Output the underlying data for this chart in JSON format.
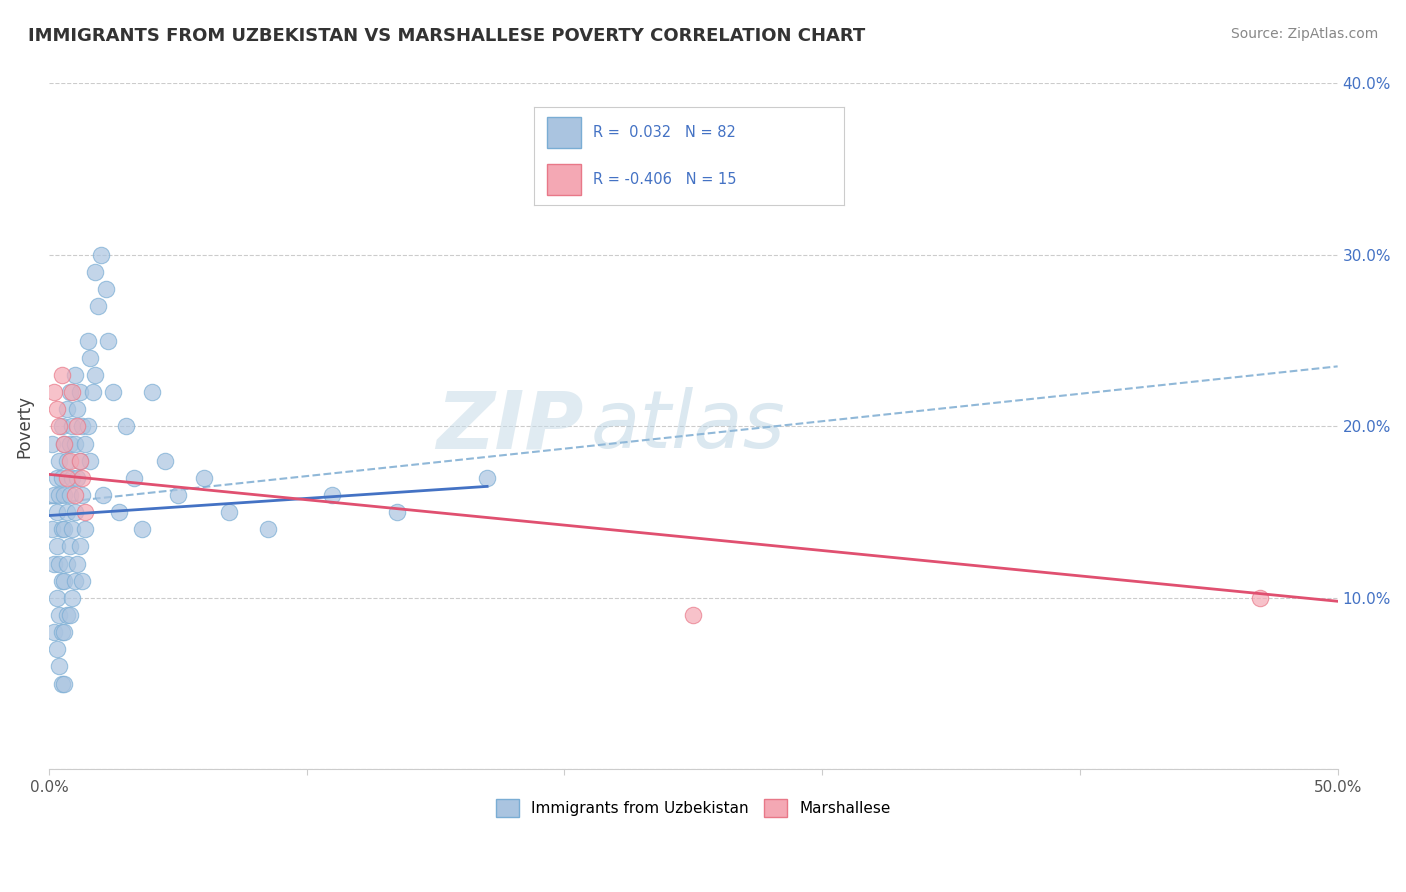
{
  "title": "IMMIGRANTS FROM UZBEKISTAN VS MARSHALLESE POVERTY CORRELATION CHART",
  "source": "Source: ZipAtlas.com",
  "ylabel": "Poverty",
  "xlim": [
    0,
    0.5
  ],
  "ylim": [
    0,
    0.4
  ],
  "xtick_positions": [
    0.0,
    0.1,
    0.2,
    0.3,
    0.4,
    0.5
  ],
  "xtick_labels": [
    "0.0%",
    "",
    "",
    "",
    "",
    "50.0%"
  ],
  "ytick_positions": [
    0.0,
    0.1,
    0.2,
    0.3,
    0.4
  ],
  "ytick_labels_right": [
    "",
    "10.0%",
    "20.0%",
    "30.0%",
    "40.0%"
  ],
  "blue_color": "#aac4e0",
  "blue_edge": "#7aadd4",
  "pink_color": "#f4a8b4",
  "pink_edge": "#e87888",
  "blue_line_color": "#4472c4",
  "pink_line_color": "#e05070",
  "dashed_line_color": "#90b8d8",
  "watermark_color": "#ddeef8",
  "background_color": "#ffffff",
  "legend_label_blue": "Immigrants from Uzbekistan",
  "legend_label_pink": "Marshallese",
  "blue_R": 0.032,
  "blue_N": 82,
  "pink_R": -0.406,
  "pink_N": 15,
  "blue_scatter_x": [
    0.001,
    0.001,
    0.002,
    0.002,
    0.002,
    0.003,
    0.003,
    0.003,
    0.003,
    0.003,
    0.004,
    0.004,
    0.004,
    0.004,
    0.004,
    0.005,
    0.005,
    0.005,
    0.005,
    0.005,
    0.005,
    0.006,
    0.006,
    0.006,
    0.006,
    0.006,
    0.006,
    0.007,
    0.007,
    0.007,
    0.007,
    0.007,
    0.008,
    0.008,
    0.008,
    0.008,
    0.008,
    0.009,
    0.009,
    0.009,
    0.009,
    0.01,
    0.01,
    0.01,
    0.01,
    0.011,
    0.011,
    0.011,
    0.012,
    0.012,
    0.012,
    0.013,
    0.013,
    0.013,
    0.014,
    0.014,
    0.015,
    0.015,
    0.016,
    0.016,
    0.017,
    0.018,
    0.018,
    0.019,
    0.02,
    0.021,
    0.022,
    0.023,
    0.025,
    0.027,
    0.03,
    0.033,
    0.036,
    0.04,
    0.045,
    0.05,
    0.06,
    0.07,
    0.085,
    0.11,
    0.135,
    0.17
  ],
  "blue_scatter_y": [
    0.19,
    0.14,
    0.16,
    0.12,
    0.08,
    0.17,
    0.15,
    0.13,
    0.1,
    0.07,
    0.18,
    0.16,
    0.12,
    0.09,
    0.06,
    0.2,
    0.17,
    0.14,
    0.11,
    0.08,
    0.05,
    0.19,
    0.16,
    0.14,
    0.11,
    0.08,
    0.05,
    0.21,
    0.18,
    0.15,
    0.12,
    0.09,
    0.22,
    0.19,
    0.16,
    0.13,
    0.09,
    0.2,
    0.17,
    0.14,
    0.1,
    0.23,
    0.19,
    0.15,
    0.11,
    0.21,
    0.17,
    0.12,
    0.22,
    0.18,
    0.13,
    0.2,
    0.16,
    0.11,
    0.19,
    0.14,
    0.25,
    0.2,
    0.24,
    0.18,
    0.22,
    0.29,
    0.23,
    0.27,
    0.3,
    0.16,
    0.28,
    0.25,
    0.22,
    0.15,
    0.2,
    0.17,
    0.14,
    0.22,
    0.18,
    0.16,
    0.17,
    0.15,
    0.14,
    0.16,
    0.15,
    0.17
  ],
  "pink_scatter_x": [
    0.002,
    0.003,
    0.004,
    0.005,
    0.006,
    0.007,
    0.008,
    0.009,
    0.01,
    0.011,
    0.012,
    0.013,
    0.014,
    0.25,
    0.47
  ],
  "pink_scatter_y": [
    0.22,
    0.21,
    0.2,
    0.23,
    0.19,
    0.17,
    0.18,
    0.22,
    0.16,
    0.2,
    0.18,
    0.17,
    0.15,
    0.09,
    0.1
  ],
  "dashed_line_x": [
    0.0,
    0.5
  ],
  "dashed_line_y": [
    0.155,
    0.235
  ],
  "blue_line_x": [
    0.0,
    0.17
  ],
  "blue_line_y": [
    0.148,
    0.165
  ],
  "pink_line_x": [
    0.0,
    0.5
  ],
  "pink_line_y": [
    0.172,
    0.098
  ]
}
